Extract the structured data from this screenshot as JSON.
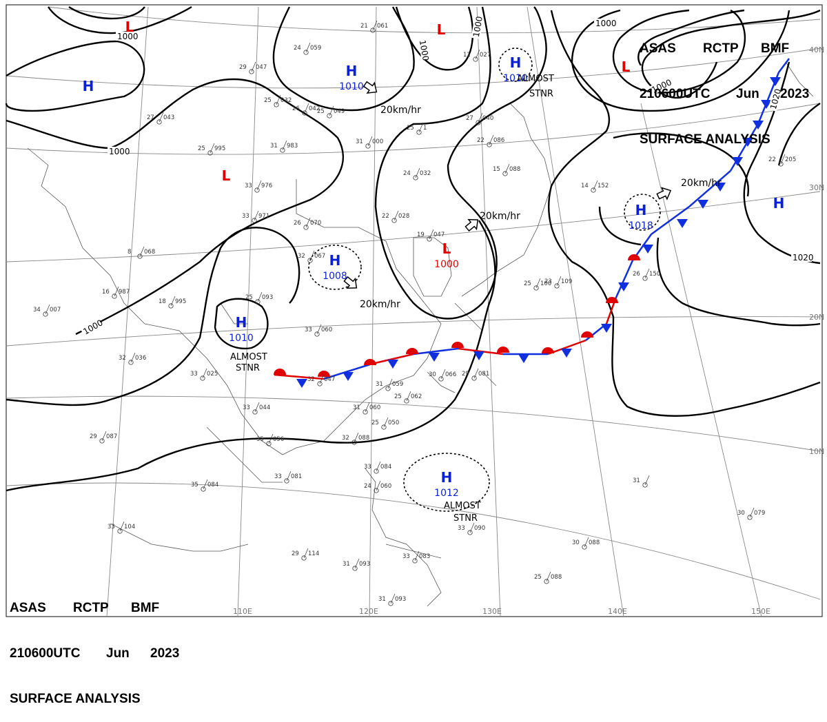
{
  "chart_title": {
    "line1": [
      "ASAS",
      "RCTP",
      "BMF"
    ],
    "line2": [
      "210600UTC",
      "Jun",
      "2023"
    ],
    "line3": "SURFACE ANALYSIS"
  },
  "colors": {
    "high": "#0a1fd6",
    "low": "#e00000",
    "isobar": "#000000",
    "cold_front": "#1030e0",
    "warm_front": "#e00000",
    "graticule": "#888888",
    "coast": "#444444"
  },
  "latitude_labels": [
    "40N",
    "30N",
    "20N",
    "10N"
  ],
  "longitude_labels": [
    "110E",
    "120E",
    "130E",
    "140E",
    "150E"
  ],
  "isobar_labels": [
    "1000",
    "1000",
    "1000",
    "1000",
    "1000",
    "1000",
    "1000",
    "1020",
    "1020"
  ],
  "pressure_systems": [
    {
      "type": "L",
      "value": ""
    },
    {
      "type": "H",
      "value": ""
    },
    {
      "type": "L",
      "value": ""
    },
    {
      "type": "H",
      "value": "1010"
    },
    {
      "type": "L",
      "value": ""
    },
    {
      "type": "H",
      "value": "1010"
    },
    {
      "type": "L",
      "value": ""
    },
    {
      "type": "H",
      "value": "1018"
    },
    {
      "type": "H",
      "value": ""
    },
    {
      "type": "H",
      "value": "1008"
    },
    {
      "type": "L",
      "value": "1000"
    },
    {
      "type": "H",
      "value": "1010"
    },
    {
      "type": "H",
      "value": "1012"
    }
  ],
  "motion_labels": [
    "20km/hr",
    "20km/hr",
    "20km/hr",
    "20km/hr"
  ],
  "stationary_notes": [
    "ALMOST",
    "STNR",
    "ALMOST",
    "STNR",
    "ALMOST",
    "STNR"
  ],
  "station_plots": [
    {
      "t": "21",
      "p": "061"
    },
    {
      "t": "24",
      "p": "059"
    },
    {
      "t": "29",
      "p": "047"
    },
    {
      "t": "25",
      "p": "032"
    },
    {
      "t": "26",
      "p": "042"
    },
    {
      "t": "25",
      "p": "049"
    },
    {
      "t": "31",
      "p": "000"
    },
    {
      "t": "25",
      "p": "995"
    },
    {
      "t": "31",
      "p": "983"
    },
    {
      "t": "33",
      "p": "976"
    },
    {
      "t": "27",
      "p": "040"
    },
    {
      "t": "22",
      "p": "086"
    },
    {
      "t": "24",
      "p": "032"
    },
    {
      "t": "15",
      "p": "088"
    },
    {
      "t": "22",
      "p": "028"
    },
    {
      "t": "19",
      "p": "047"
    },
    {
      "t": "32",
      "p": "067"
    },
    {
      "t": "25",
      "p": "093"
    },
    {
      "t": "33",
      "p": "060"
    },
    {
      "t": "18",
      "p": "995"
    },
    {
      "t": "34",
      "p": "007"
    },
    {
      "t": "32",
      "p": "036"
    },
    {
      "t": "33",
      "p": "025"
    },
    {
      "t": "32",
      "p": "047"
    },
    {
      "t": "31",
      "p": "059"
    },
    {
      "t": "30",
      "p": "066"
    },
    {
      "t": "29",
      "p": "081"
    },
    {
      "t": "25",
      "p": "062"
    },
    {
      "t": "31",
      "p": "060"
    },
    {
      "t": "25",
      "p": "050"
    },
    {
      "t": "33",
      "p": "044"
    },
    {
      "t": "35",
      "p": "056"
    },
    {
      "t": "32",
      "p": "088"
    },
    {
      "t": "29",
      "p": "087"
    },
    {
      "t": "35",
      "p": "084"
    },
    {
      "t": "33",
      "p": "081"
    },
    {
      "t": "33",
      "p": "084"
    },
    {
      "t": "24",
      "p": "060"
    },
    {
      "t": "33",
      "p": "104"
    },
    {
      "t": "29",
      "p": "114"
    },
    {
      "t": "31",
      "p": "093"
    },
    {
      "t": "33",
      "p": "083"
    },
    {
      "t": "31",
      "p": "093"
    },
    {
      "t": "25",
      "p": "088"
    },
    {
      "t": "30",
      "p": "088"
    },
    {
      "t": "30",
      "p": "079"
    },
    {
      "t": "33",
      "p": "090"
    },
    {
      "t": "22",
      "p": "205"
    },
    {
      "t": "14",
      "p": "152"
    },
    {
      "t": "23",
      "p": "109"
    },
    {
      "t": "26",
      "p": "150"
    },
    {
      "t": "25",
      "p": "100"
    },
    {
      "t": "12",
      "p": "027"
    },
    {
      "t": "31",
      "p": ""
    },
    {
      "t": "8",
      "p": "068"
    },
    {
      "t": "16",
      "p": "987"
    },
    {
      "t": "27",
      "p": "043"
    },
    {
      "t": "25",
      "p": "1"
    },
    {
      "t": "33",
      "p": "971"
    },
    {
      "t": "26",
      "p": "070"
    }
  ]
}
